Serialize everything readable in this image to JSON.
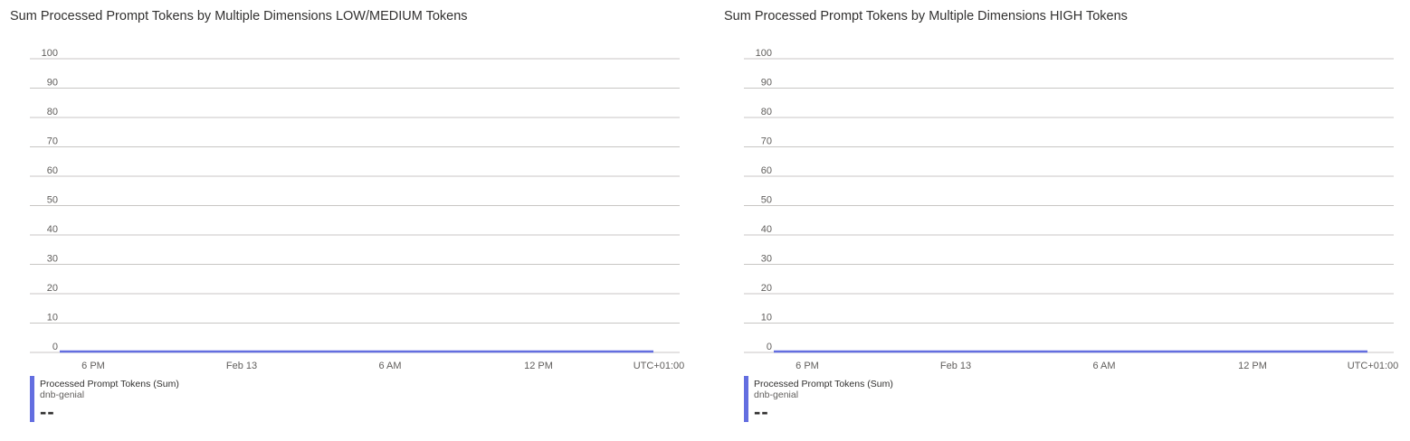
{
  "colors": {
    "series": "#636ee0",
    "grid": "#c8c6c4"
  },
  "charts": [
    {
      "title": "Sum Processed Prompt Tokens by Multiple Dimensions LOW/MEDIUM Tokens",
      "legend": {
        "metric": "Processed Prompt Tokens (Sum)",
        "resource": "dnb-genial",
        "value": "--"
      }
    },
    {
      "title": "Sum Processed Prompt Tokens by Multiple Dimensions HIGH Tokens",
      "legend": {
        "metric": "Processed Prompt Tokens (Sum)",
        "resource": "dnb-genial",
        "value": "--"
      }
    }
  ],
  "chart_data": [
    {
      "type": "line",
      "title": "Sum Processed Prompt Tokens by Multiple Dimensions LOW/MEDIUM Tokens",
      "ylim": [
        0,
        100
      ],
      "y_ticks": [
        0,
        10,
        20,
        30,
        40,
        50,
        60,
        70,
        80,
        90,
        100
      ],
      "x_tick_labels": [
        "6 PM",
        "Feb 13",
        "6 AM",
        "12 PM",
        "UTC+01:00"
      ],
      "grid": true,
      "legend_placement": "bottom-left",
      "series": [
        {
          "name": "Processed Prompt Tokens (Sum)",
          "x": [
            "5 PM",
            "Feb 13 4 PM"
          ],
          "y": [
            0,
            0
          ]
        }
      ]
    },
    {
      "type": "line",
      "title": "Sum Processed Prompt Tokens by Multiple Dimensions HIGH Tokens",
      "ylim": [
        0,
        100
      ],
      "y_ticks": [
        0,
        10,
        20,
        30,
        40,
        50,
        60,
        70,
        80,
        90,
        100
      ],
      "x_tick_labels": [
        "6 PM",
        "Feb 13",
        "6 AM",
        "12 PM",
        "UTC+01:00"
      ],
      "grid": true,
      "legend_placement": "bottom-left",
      "series": [
        {
          "name": "Processed Prompt Tokens (Sum)",
          "x": [
            "5 PM",
            "Feb 13 4 PM"
          ],
          "y": [
            0,
            0
          ]
        }
      ]
    }
  ]
}
